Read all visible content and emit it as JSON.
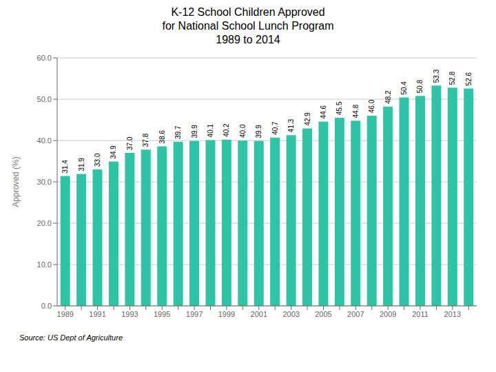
{
  "chart_data": {
    "type": "bar",
    "title": "K-12 School Children Approved\nfor National School Lunch Program\n1989 to 2014",
    "categories": [
      "1989",
      null,
      "1991",
      null,
      "1993",
      null,
      "1995",
      null,
      "1997",
      null,
      "1999",
      null,
      "2001",
      null,
      "2003",
      null,
      "2005",
      null,
      "2007",
      null,
      "2009",
      null,
      "2011",
      null,
      "2013",
      null
    ],
    "values": [
      31.4,
      31.9,
      33.0,
      34.9,
      37.0,
      37.8,
      38.6,
      39.7,
      39.9,
      40.1,
      40.2,
      40.0,
      39.9,
      40.7,
      41.3,
      42.9,
      44.6,
      45.5,
      44.8,
      46.0,
      48.2,
      50.4,
      50.8,
      53.3,
      52.8,
      52.6
    ],
    "value_labels": [
      "31.4",
      "31.9",
      "33.0",
      "34.9",
      "37.0",
      "37.8",
      "38.6",
      "39.7",
      "39.9",
      "40.1",
      "40.2",
      "40.0",
      "39.9",
      "40.7",
      "41.3",
      "42.9",
      "44.6",
      "45.5",
      "44.8",
      "46.0",
      "48.2",
      "50.4",
      "50.8",
      "53.3",
      "52.8",
      "52.6"
    ],
    "data_labels": true,
    "color": "#2ec4a5",
    "ylabel": "Approved (%)",
    "ylim": [
      0,
      60
    ],
    "yticks": [
      {
        "value": 0,
        "label": "0.0"
      },
      {
        "value": 10,
        "label": "10.0"
      },
      {
        "value": 20,
        "label": "20.0"
      },
      {
        "value": 30,
        "label": "30.0"
      },
      {
        "value": 40,
        "label": "40.0"
      },
      {
        "value": 50,
        "label": "50.0"
      },
      {
        "value": 60,
        "label": "60.0"
      }
    ],
    "grid": true,
    "annotations": [
      "Source:  US Dept of Agriculture"
    ]
  }
}
